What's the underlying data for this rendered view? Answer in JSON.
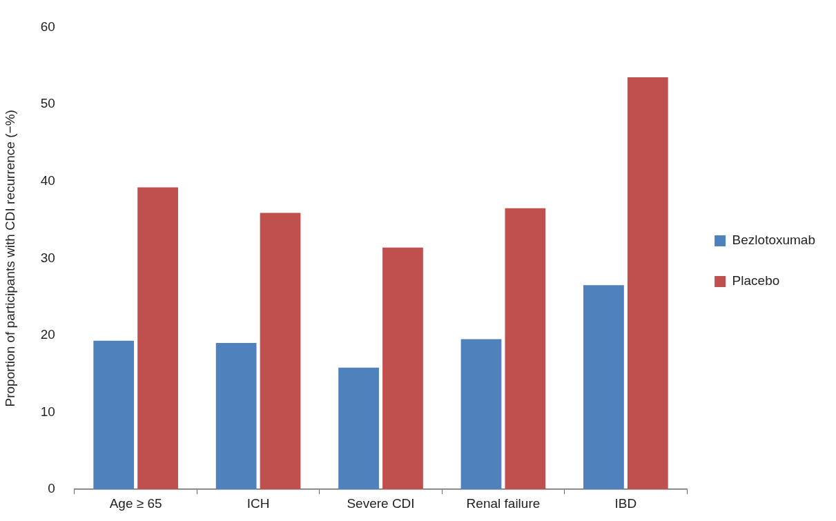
{
  "chart_data": {
    "type": "bar",
    "ylabel": "Proportion of participants with CDI recurrence (−%)",
    "categories": [
      "Age ≥ 65",
      "ICH",
      "Severe CDI",
      "Renal failure",
      "IBD"
    ],
    "series": [
      {
        "name": "Bezlotoxumab",
        "color": "#4f81bd",
        "values": [
          19.3,
          19.0,
          15.8,
          19.5,
          26.5
        ]
      },
      {
        "name": "Placebo",
        "color": "#c0504d",
        "values": [
          39.2,
          35.9,
          31.4,
          36.5,
          53.5
        ]
      }
    ],
    "ylim": [
      0,
      60
    ],
    "yticks": [
      0,
      10,
      20,
      30,
      40,
      50,
      60
    ],
    "grid": false,
    "legend": "right"
  }
}
